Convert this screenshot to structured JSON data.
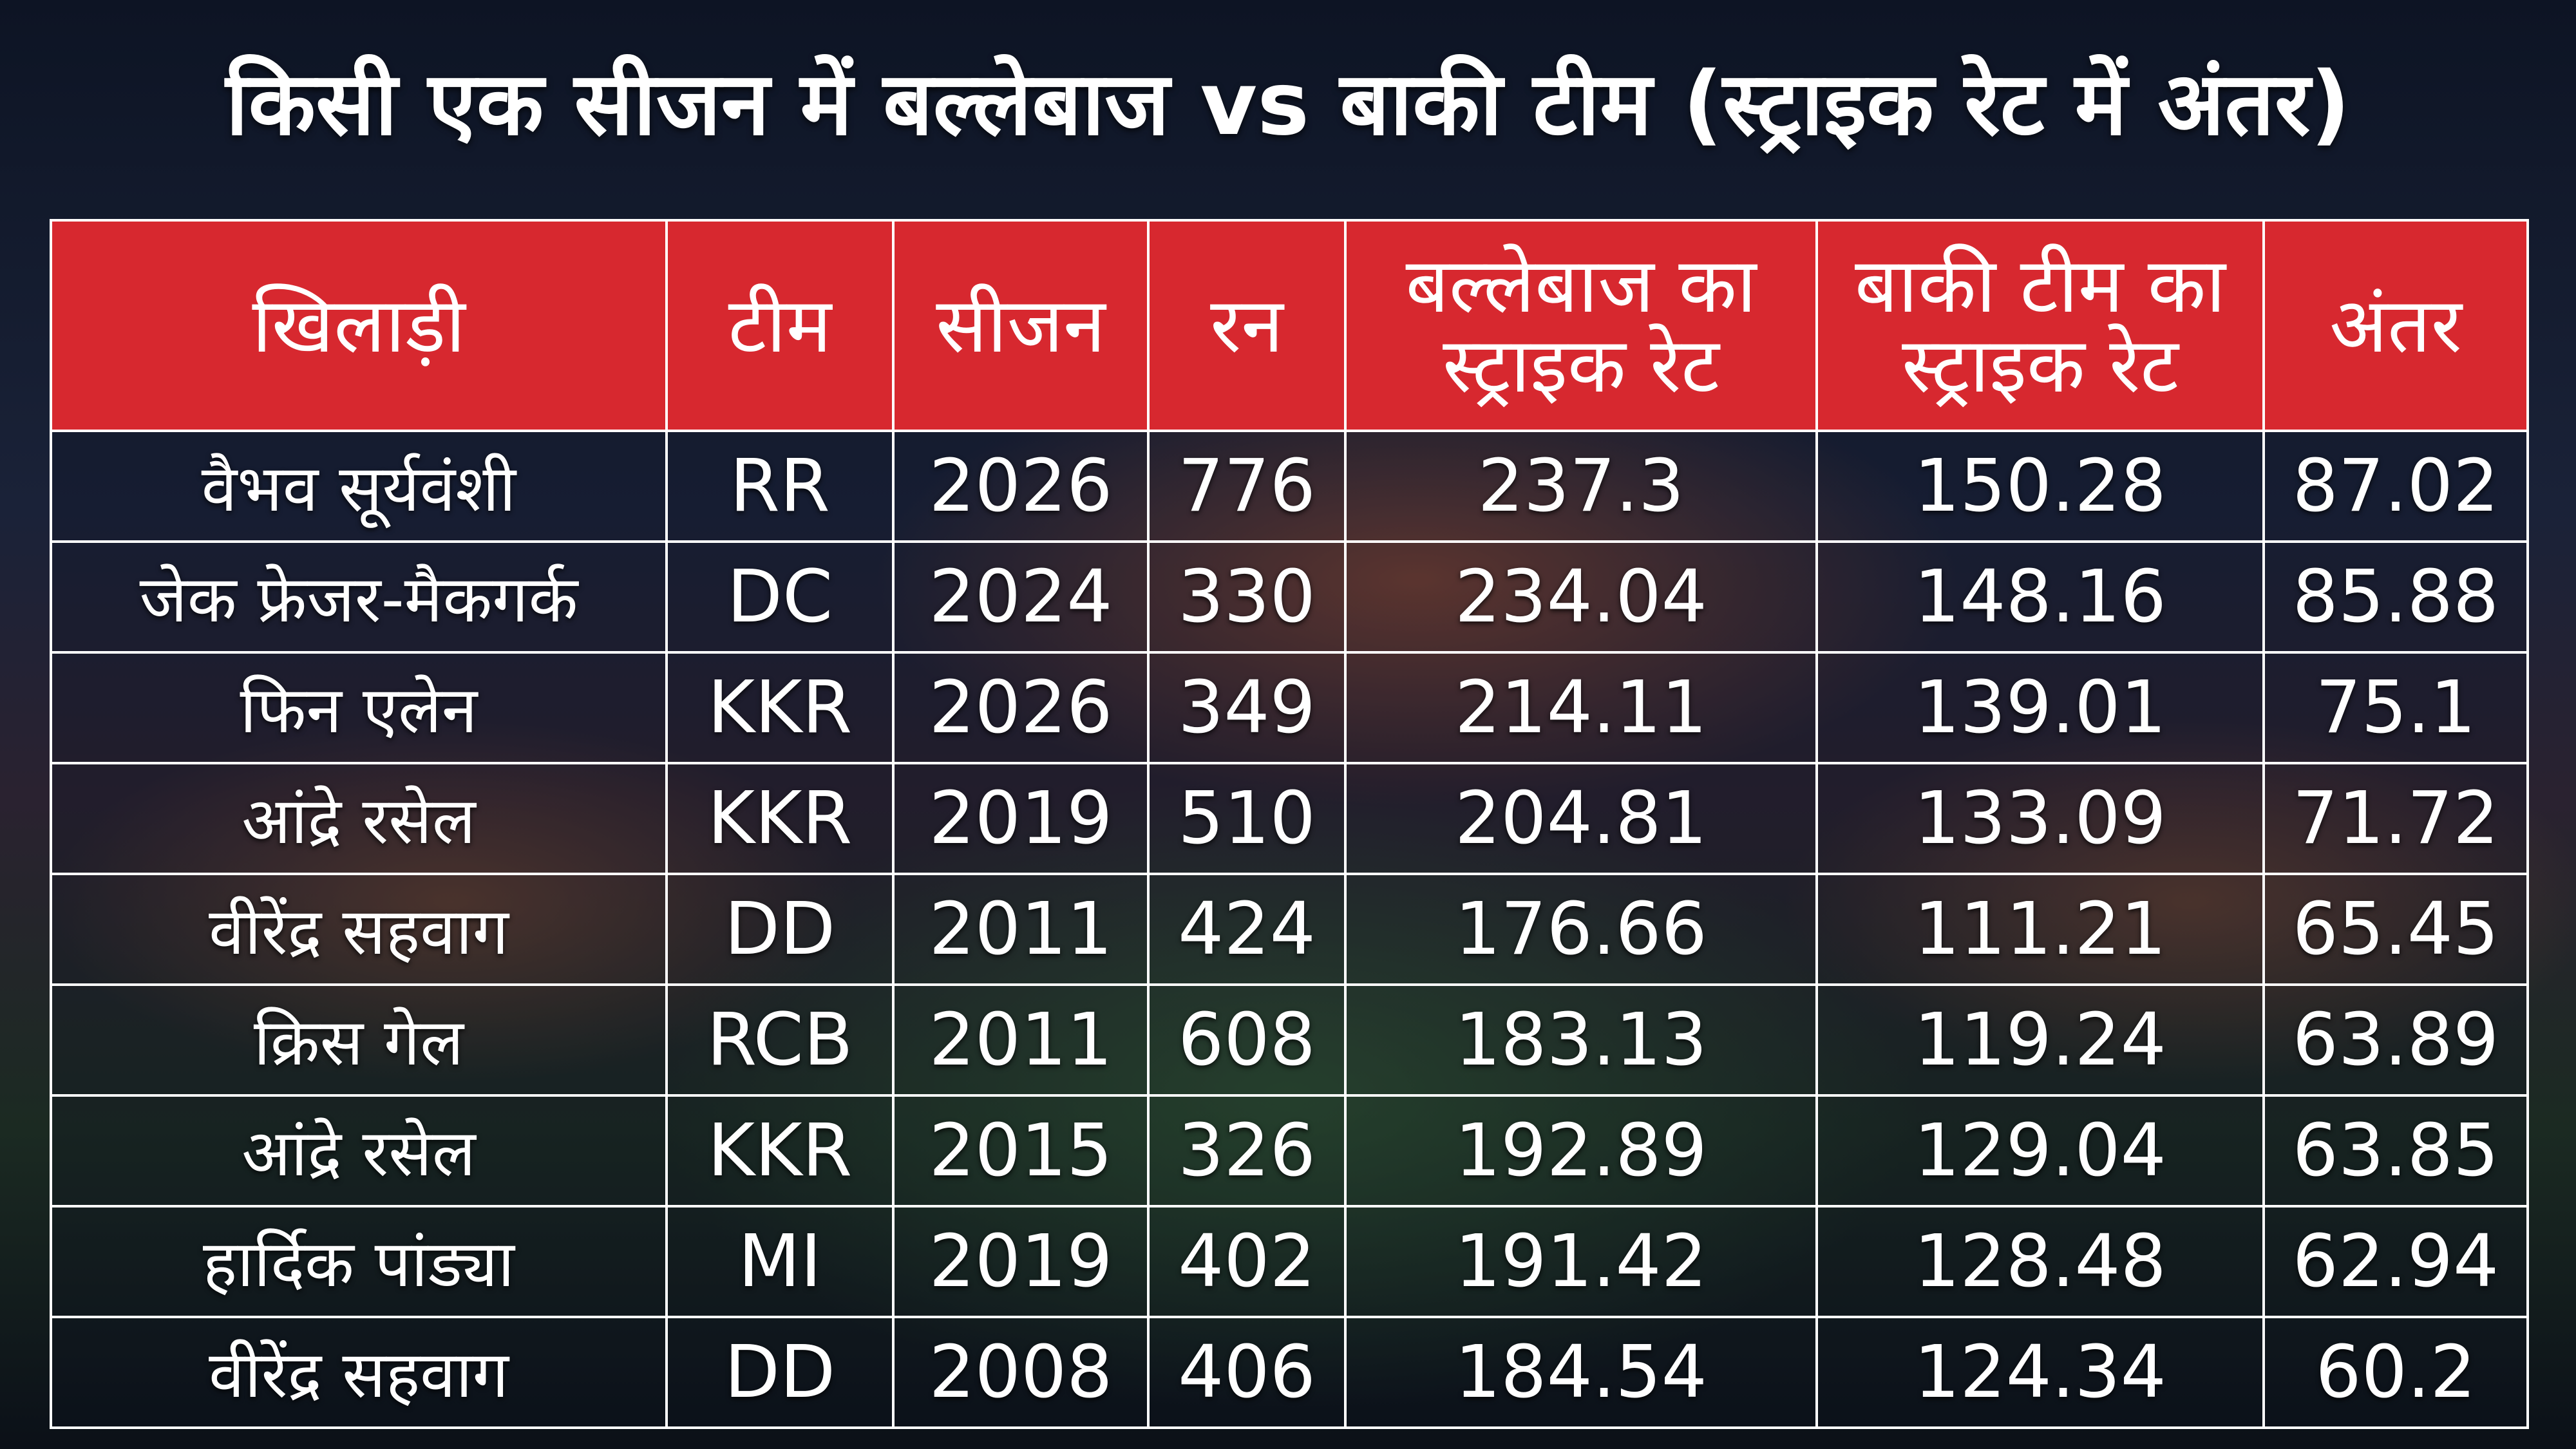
{
  "header": {
    "title": "किसी एक सीजन में बल्लेबाज vs बाकी टीम (स्ट्राइक रेट में अंतर)"
  },
  "table": {
    "headers": [
      "खिलाड़ी",
      "टीम",
      "सीजन",
      "रन",
      "बल्लेबाज का स्ट्राइक रेट",
      "बाकी टीम का स्ट्राइक रेट",
      "अंतर"
    ],
    "rows": [
      [
        "वैभव सूर्यवंशी",
        "RR",
        "2026",
        "776",
        "237.3",
        "150.28",
        "87.02"
      ],
      [
        "जेक फ्रेजर-मैकगर्क",
        "DC",
        "2024",
        "330",
        "234.04",
        "148.16",
        "85.88"
      ],
      [
        "फिन एलेन",
        "KKR",
        "2026",
        "349",
        "214.11",
        "139.01",
        "75.1"
      ],
      [
        "आंद्रे रसेल",
        "KKR",
        "2019",
        "510",
        "204.81",
        "133.09",
        "71.72"
      ],
      [
        "वीरेंद्र सहवाग",
        "DD",
        "2011",
        "424",
        "176.66",
        "111.21",
        "65.45"
      ],
      [
        "क्रिस गेल",
        "RCB",
        "2011",
        "608",
        "183.13",
        "119.24",
        "63.89"
      ],
      [
        "आंद्रे रसेल",
        "KKR",
        "2015",
        "326",
        "192.89",
        "129.04",
        "63.85"
      ],
      [
        "हार्दिक पांड्या",
        "MI",
        "2019",
        "402",
        "191.42",
        "128.48",
        "62.94"
      ],
      [
        "वीरेंद्र सहवाग",
        "DD",
        "2008",
        "406",
        "184.54",
        "124.34",
        "60.2"
      ]
    ]
  }
}
